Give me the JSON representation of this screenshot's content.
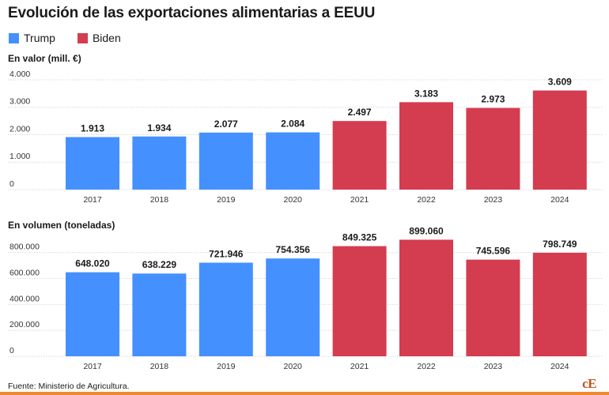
{
  "title": "Evolución de las exportaciones alimentarias a EEUU",
  "legend": [
    {
      "label": "Trump",
      "color": "#4590ff"
    },
    {
      "label": "Biden",
      "color": "#d43c50"
    }
  ],
  "panels": {
    "value_label": "En valor (mill. €)",
    "volume_label": "En volumen (toneladas)"
  },
  "source": "Fuente: Ministerio de Agricultura.",
  "logo": "cE",
  "chart_data": [
    {
      "type": "bar",
      "ylabel": "En valor (mill. €)",
      "categories": [
        "2017",
        "2018",
        "2019",
        "2020",
        "2021",
        "2022",
        "2023",
        "2024"
      ],
      "values": [
        1913,
        1934,
        2077,
        2084,
        2497,
        3183,
        2973,
        3609
      ],
      "value_labels": [
        "1.913",
        "1.934",
        "2.077",
        "2.084",
        "2.497",
        "3.183",
        "2.973",
        "3.609"
      ],
      "groups": [
        "Trump",
        "Trump",
        "Trump",
        "Trump",
        "Biden",
        "Biden",
        "Biden",
        "Biden"
      ],
      "yticks": [
        0,
        1000,
        2000,
        3000,
        4000
      ],
      "ytick_labels": [
        "0",
        "1.000",
        "2.000",
        "3.000",
        "4.000"
      ],
      "ylim": [
        0,
        4200
      ],
      "grid": true
    },
    {
      "type": "bar",
      "ylabel": "En volumen (toneladas)",
      "categories": [
        "2017",
        "2018",
        "2019",
        "2020",
        "2021",
        "2022",
        "2023",
        "2024"
      ],
      "values": [
        648020,
        638229,
        721946,
        754356,
        849325,
        899060,
        745596,
        798749
      ],
      "value_labels": [
        "648.020",
        "638.229",
        "721.946",
        "754.356",
        "849.325",
        "899.060",
        "745.596",
        "798.749"
      ],
      "groups": [
        "Trump",
        "Trump",
        "Trump",
        "Trump",
        "Biden",
        "Biden",
        "Biden",
        "Biden"
      ],
      "yticks": [
        0,
        200000,
        400000,
        600000,
        800000
      ],
      "ytick_labels": [
        "0",
        "200.000",
        "400.000",
        "600.000",
        "800.000"
      ],
      "ylim": [
        0,
        920000
      ],
      "grid": true
    }
  ]
}
